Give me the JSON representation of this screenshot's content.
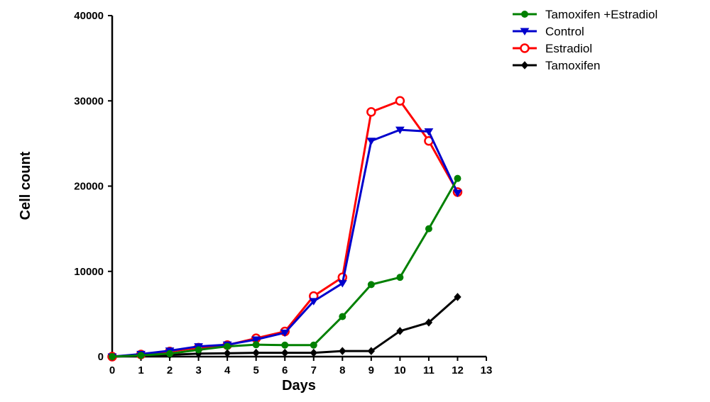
{
  "chart_data": {
    "type": "line",
    "title": "",
    "xlabel": "Days",
    "ylabel": "Cell count",
    "xlim": [
      0,
      13
    ],
    "ylim": [
      0,
      40000
    ],
    "x_ticks": [
      "0",
      "1",
      "2",
      "3",
      "4",
      "5",
      "6",
      "7",
      "8",
      "9",
      "10",
      "11",
      "12",
      "13"
    ],
    "y_ticks": [
      "0",
      "10000",
      "20000",
      "30000",
      "40000"
    ],
    "grid": false,
    "legend_position": "top-right",
    "series": [
      {
        "name": "Tamoxifen +Estradiol",
        "color": "#008000",
        "marker": "filled-circle",
        "x": [
          0,
          1,
          2,
          3,
          4,
          5,
          6,
          7,
          8,
          9,
          10,
          11,
          12
        ],
        "y": [
          0,
          150,
          350,
          800,
          1200,
          1400,
          1350,
          1350,
          4700,
          8450,
          9300,
          15000,
          20900
        ]
      },
      {
        "name": "Control",
        "color": "#0000cc",
        "marker": "filled-triangle-down",
        "x": [
          0,
          1,
          2,
          3,
          4,
          5,
          6,
          7,
          8,
          9,
          10,
          11,
          12
        ],
        "y": [
          0,
          300,
          700,
          1200,
          1400,
          2000,
          2800,
          6500,
          8600,
          25300,
          26600,
          26400,
          19200
        ]
      },
      {
        "name": "Estradiol",
        "color": "#ff0000",
        "marker": "open-circle",
        "x": [
          0,
          1,
          2,
          3,
          4,
          5,
          6,
          7,
          8,
          9,
          10,
          11,
          12
        ],
        "y": [
          0,
          250,
          600,
          1050,
          1350,
          2150,
          2950,
          7100,
          9300,
          28700,
          30000,
          25300,
          19300
        ]
      },
      {
        "name": "Tamoxifen",
        "color": "#000000",
        "marker": "filled-diamond",
        "x": [
          0,
          1,
          2,
          3,
          4,
          5,
          6,
          7,
          8,
          9,
          10,
          11,
          12
        ],
        "y": [
          0,
          100,
          200,
          350,
          400,
          450,
          450,
          450,
          650,
          650,
          3000,
          4000,
          7000
        ]
      }
    ]
  }
}
